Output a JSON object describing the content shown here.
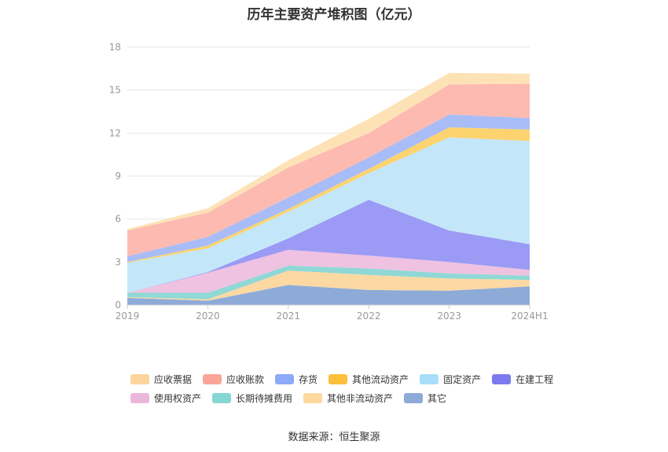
{
  "title": "历年主要资产堆积图（亿元）",
  "source": "数据来源：恒生聚源",
  "chart_data": {
    "type": "area",
    "stacked": true,
    "categories": [
      "2019",
      "2020",
      "2021",
      "2022",
      "2023",
      "2024H1"
    ],
    "y_ticks": [
      "0",
      "3",
      "6",
      "9",
      "12",
      "15",
      "18"
    ],
    "ylim": [
      0,
      18
    ],
    "grid": true,
    "legend_position": "bottom",
    "series": [
      {
        "name": "其它",
        "color": "#8eabd8",
        "values": [
          0.5,
          0.3,
          1.4,
          1.05,
          1.0,
          1.3
        ]
      },
      {
        "name": "其他非流动资产",
        "color": "#fcd9a2",
        "values": [
          0.05,
          0.1,
          1.0,
          1.05,
          0.85,
          0.45
        ]
      },
      {
        "name": "长期待摊费用",
        "color": "#8fd8d6",
        "values": [
          0.3,
          0.45,
          0.35,
          0.45,
          0.35,
          0.3
        ]
      },
      {
        "name": "使用权资产",
        "color": "#eec2e0",
        "values": [
          0.0,
          1.4,
          1.1,
          0.9,
          0.8,
          0.4
        ]
      },
      {
        "name": "在建工程",
        "color": "#9b9af5",
        "values": [
          0.0,
          0.05,
          0.8,
          3.9,
          2.2,
          1.8
        ]
      },
      {
        "name": "固定资产",
        "color": "#c3e7f9",
        "values": [
          2.1,
          1.65,
          1.85,
          1.85,
          6.5,
          7.2
        ]
      },
      {
        "name": "其他流动资产",
        "color": "#fcd36e",
        "values": [
          0.05,
          0.2,
          0.2,
          0.3,
          0.7,
          0.8
        ]
      },
      {
        "name": "存货",
        "color": "#a8bdf7",
        "values": [
          0.4,
          0.6,
          0.8,
          0.8,
          0.9,
          0.8
        ]
      },
      {
        "name": "应收账款",
        "color": "#fdbab1",
        "values": [
          1.8,
          1.7,
          2.1,
          1.7,
          2.1,
          2.4
        ]
      },
      {
        "name": "应收票据",
        "color": "#fde2b6",
        "values": [
          0.1,
          0.3,
          0.5,
          1.0,
          0.8,
          0.7
        ]
      }
    ],
    "legend_order": [
      "应收票据",
      "应收账款",
      "存货",
      "其他流动资产",
      "固定资产",
      "在建工程",
      "使用权资产",
      "长期待摊费用",
      "其他非流动资产",
      "其它"
    ],
    "legend_colors": {
      "应收票据": "#fdd49c",
      "应收账款": "#f9a59a",
      "存货": "#8ea9f7",
      "其他流动资产": "#fbbf3c",
      "固定资产": "#a8def9",
      "在建工程": "#7b7bef",
      "使用权资产": "#ebb8db",
      "长期待摊费用": "#86d6d4",
      "其他非流动资产": "#fdd9a0",
      "其它": "#8eabd8"
    }
  }
}
